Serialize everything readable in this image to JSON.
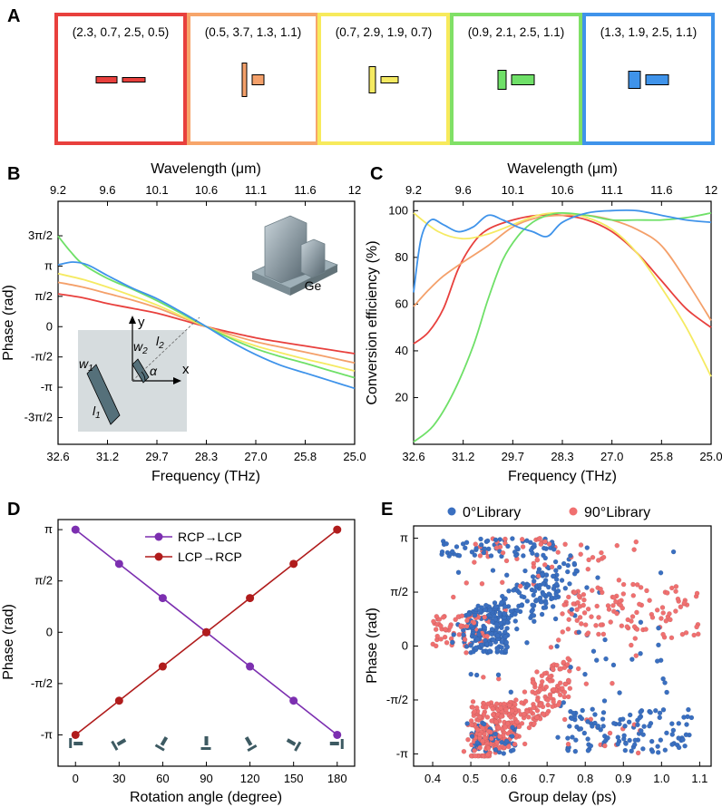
{
  "panels": {
    "A": {
      "label": "A",
      "boxes": [
        {
          "text": "(2.3, 0.7, 2.5, 0.5)",
          "params": [
            2.3,
            0.7,
            2.5,
            0.5
          ],
          "frame": "#e8403d",
          "fill": "#e8403d"
        },
        {
          "text": "(0.5, 3.7, 1.3, 1.1)",
          "params": [
            0.5,
            3.7,
            1.3,
            1.1
          ],
          "frame": "#f7a56a",
          "fill": "#f4a06a"
        },
        {
          "text": "(0.7, 2.9, 1.9, 0.7)",
          "params": [
            0.7,
            2.9,
            1.9,
            0.7
          ],
          "frame": "#f7ea5c",
          "fill": "#f5ea62"
        },
        {
          "text": "(0.9, 2.1, 2.5, 1.1)",
          "params": [
            0.9,
            2.1,
            2.5,
            1.1
          ],
          "frame": "#80e066",
          "fill": "#6fe068"
        },
        {
          "text": "(1.3, 1.9, 2.5, 1.1)",
          "params": [
            1.3,
            1.9,
            2.5,
            1.1
          ],
          "frame": "#3f93ea",
          "fill": "#3f93ea"
        }
      ]
    },
    "B": {
      "label": "B",
      "inset_material": "Ge",
      "inset_symbols": {
        "y": "y",
        "x": "x",
        "w1": "w",
        "w1_sub": "1",
        "l1": "l",
        "l1_sub": "1",
        "w2": "w",
        "w2_sub": "2",
        "l2": "l",
        "l2_sub": "2",
        "alpha": "α"
      }
    },
    "C": {
      "label": "C"
    },
    "D": {
      "label": "D"
    },
    "E": {
      "label": "E"
    }
  },
  "chart_data": [
    {
      "id": "B",
      "type": "line",
      "xlabel": "Frequency (THz)",
      "x2label": "Wavelength (μm)",
      "ylabel": "Phase  (rad)",
      "x_ticks": [
        "32.6",
        "31.2",
        "29.7",
        "28.3",
        "27.0",
        "25.8",
        "25.0"
      ],
      "x_tick_pos": [
        0,
        1,
        2,
        3,
        4,
        5,
        6
      ],
      "x2_ticks": [
        "9.2",
        "9.6",
        "10.1",
        "10.6",
        "11.1",
        "11.6",
        "12"
      ],
      "y_ticks": [
        "3π/2",
        "π",
        "π/2",
        "0",
        "-π/2",
        "-π",
        "-3π/2"
      ],
      "y_tick_vals": [
        4.712,
        3.142,
        1.571,
        0,
        -1.571,
        -3.142,
        -4.712
      ],
      "xlim": [
        0,
        6
      ],
      "ylim": [
        -6.1,
        6.5
      ],
      "series": [
        {
          "name": "red",
          "color": "#e8403d",
          "x": [
            0,
            0.5,
            1,
            1.5,
            2,
            2.5,
            3,
            3.5,
            4,
            4.5,
            5,
            5.5,
            6
          ],
          "y": [
            1.7,
            1.5,
            1.2,
            0.95,
            0.7,
            0.35,
            0.0,
            -0.3,
            -0.58,
            -0.8,
            -1.0,
            -1.2,
            -1.4
          ]
        },
        {
          "name": "orange",
          "color": "#f4a06a",
          "x": [
            0,
            0.5,
            1,
            1.5,
            2,
            2.5,
            3,
            3.5,
            4,
            4.5,
            5,
            5.5,
            6
          ],
          "y": [
            2.3,
            2.05,
            1.72,
            1.38,
            0.98,
            0.48,
            0.0,
            -0.42,
            -0.78,
            -1.06,
            -1.32,
            -1.6,
            -1.88
          ]
        },
        {
          "name": "yellow",
          "color": "#f5ea62",
          "x": [
            0,
            0.5,
            1,
            1.5,
            2,
            2.5,
            3,
            3.5,
            4,
            4.5,
            5,
            5.5,
            6
          ],
          "y": [
            2.75,
            2.45,
            2.05,
            1.6,
            1.12,
            0.55,
            0.0,
            -0.55,
            -1.0,
            -1.35,
            -1.68,
            -1.98,
            -2.3
          ]
        },
        {
          "name": "green",
          "color": "#6fe068",
          "x": [
            0,
            0.25,
            0.5,
            1,
            1.5,
            2,
            2.5,
            3,
            3.5,
            4,
            4.5,
            5,
            5.5,
            6
          ],
          "y": [
            4.7,
            3.9,
            3.25,
            2.5,
            1.95,
            1.35,
            0.68,
            0.0,
            -0.62,
            -1.15,
            -1.55,
            -1.9,
            -2.28,
            -2.65
          ]
        },
        {
          "name": "blue",
          "color": "#3f93ea",
          "x": [
            0,
            0.3,
            0.6,
            1,
            1.5,
            2,
            2.5,
            3,
            3.5,
            4,
            4.5,
            5,
            5.5,
            6
          ],
          "y": [
            3.2,
            3.35,
            3.2,
            2.65,
            2.0,
            1.45,
            0.75,
            0.0,
            -0.78,
            -1.45,
            -2.0,
            -2.4,
            -2.8,
            -3.2
          ]
        }
      ]
    },
    {
      "id": "C",
      "type": "line",
      "xlabel": "Frequency (THz)",
      "x2label": "Wavelength (μm)",
      "ylabel": "Conversion efficiency (%)",
      "x_ticks": [
        "32.6",
        "31.2",
        "29.7",
        "28.3",
        "27.0",
        "25.8",
        "25.0"
      ],
      "x_tick_pos": [
        0,
        1,
        2,
        3,
        4,
        5,
        6
      ],
      "x2_ticks": [
        "9.2",
        "9.6",
        "10.1",
        "10.6",
        "11.1",
        "11.6",
        "12"
      ],
      "y_ticks": [
        "20",
        "40",
        "60",
        "80",
        "100"
      ],
      "y_tick_vals": [
        20,
        40,
        60,
        80,
        100
      ],
      "xlim": [
        0,
        6
      ],
      "ylim": [
        0,
        104
      ],
      "series": [
        {
          "name": "red",
          "color": "#e8403d",
          "x": [
            0,
            0.3,
            0.6,
            0.9,
            1.2,
            1.5,
            2,
            2.5,
            3,
            3.5,
            4,
            4.5,
            5,
            5.5,
            6
          ],
          "y": [
            43,
            48,
            58,
            75,
            86,
            92,
            96,
            98,
            98,
            96,
            91,
            82,
            70,
            58,
            50
          ]
        },
        {
          "name": "orange",
          "color": "#f4a06a",
          "x": [
            0,
            0.3,
            0.6,
            1,
            1.5,
            2,
            2.5,
            3,
            3.5,
            4,
            4.5,
            5,
            5.5,
            6
          ],
          "y": [
            59,
            66,
            72,
            78,
            85,
            93,
            97,
            98,
            98,
            96,
            92,
            85,
            70,
            53
          ]
        },
        {
          "name": "yellow",
          "color": "#f5ea62",
          "x": [
            0,
            0.5,
            1,
            1.5,
            2,
            2.5,
            3,
            3.5,
            4,
            4.5,
            5,
            5.5,
            6
          ],
          "y": [
            99,
            91,
            88,
            90,
            94,
            98,
            99,
            97,
            92,
            82,
            67,
            50,
            29
          ]
        },
        {
          "name": "green",
          "color": "#6fe068",
          "x": [
            0,
            0.4,
            0.8,
            1.2,
            1.5,
            1.8,
            2.1,
            2.4,
            2.7,
            3.0,
            3.5,
            4,
            4.5,
            5,
            5.5,
            6
          ],
          "y": [
            1,
            8,
            22,
            42,
            62,
            79,
            89,
            95,
            98,
            99,
            98,
            96,
            96,
            96,
            97,
            99
          ]
        },
        {
          "name": "blue",
          "color": "#3f93ea",
          "x": [
            0,
            0.15,
            0.35,
            0.6,
            0.9,
            1.2,
            1.5,
            1.8,
            2.1,
            2.4,
            2.7,
            3.0,
            3.5,
            4,
            4.5,
            5,
            5.5,
            6
          ],
          "y": [
            65,
            88,
            96,
            94,
            91,
            93,
            98,
            96,
            93,
            91,
            89,
            95,
            99,
            100,
            100,
            98,
            96,
            95
          ]
        }
      ]
    },
    {
      "id": "D",
      "type": "line",
      "xlabel": "Rotation angle (degree)",
      "ylabel": "Phase  (rad)",
      "x_ticks": [
        "0",
        "30",
        "60",
        "90",
        "120",
        "150",
        "180"
      ],
      "x_tick_vals": [
        0,
        30,
        60,
        90,
        120,
        150,
        180
      ],
      "y_ticks": [
        "π",
        "π/2",
        "0",
        "-π/2",
        "-π"
      ],
      "y_tick_vals": [
        3.1416,
        1.5708,
        0,
        -1.5708,
        -3.1416
      ],
      "xlim": [
        -12,
        192
      ],
      "ylim": [
        -4.1,
        3.45
      ],
      "series": [
        {
          "name": "RCP→LCP",
          "color": "#7c2fb0",
          "x": [
            0,
            30,
            60,
            90,
            120,
            150,
            180
          ],
          "y": [
            3.1416,
            2.0944,
            1.0472,
            0,
            -1.0472,
            -2.0944,
            -3.1416
          ]
        },
        {
          "name": "LCP→RCP",
          "color": "#b01c1c",
          "x": [
            0,
            30,
            60,
            90,
            120,
            150,
            180
          ],
          "y": [
            -3.1416,
            -2.0944,
            -1.0472,
            0,
            1.0472,
            2.0944,
            3.1416
          ]
        }
      ]
    },
    {
      "id": "E",
      "type": "scatter",
      "xlabel": "Group delay (ps)",
      "ylabel": "Phase  (rad)",
      "x_ticks": [
        "0.4",
        "0.5",
        "0.6",
        "0.7",
        "0.8",
        "0.9",
        "1.0",
        "1.1"
      ],
      "x_tick_vals": [
        0.4,
        0.5,
        0.6,
        0.7,
        0.8,
        0.9,
        1.0,
        1.1
      ],
      "y_ticks": [
        "π",
        "π/2",
        "0",
        "-π/2",
        "-π"
      ],
      "y_tick_vals": [
        3.1416,
        1.5708,
        0,
        -1.5708,
        -3.1416
      ],
      "xlim": [
        0.35,
        1.13
      ],
      "ylim": [
        -3.5,
        3.5
      ],
      "series": [
        {
          "name": "0°Library",
          "color": "#3a6fc0",
          "clusters": [
            {
              "n": 160,
              "x0": 0.5,
              "x1": 0.78,
              "y0": 0.3,
              "y1": 2.2,
              "slope": 4.5
            },
            {
              "n": 60,
              "x0": 0.42,
              "x1": 0.72,
              "y0": 2.6,
              "y1": 3.14
            },
            {
              "n": 140,
              "x0": 0.48,
              "x1": 0.6,
              "y0": -0.2,
              "y1": 1.2
            },
            {
              "n": 110,
              "x0": 0.75,
              "x1": 1.08,
              "y0": -3.1,
              "y1": -1.8
            },
            {
              "n": 70,
              "x0": 0.45,
              "x1": 1.05,
              "y0": -3.14,
              "y1": 3.1
            },
            {
              "n": 50,
              "x0": 0.5,
              "x1": 0.62,
              "y0": -3.1,
              "y1": -2.2
            }
          ]
        },
        {
          "name": "90°Library",
          "color": "#f07070",
          "clusters": [
            {
              "n": 220,
              "x0": 0.5,
              "x1": 0.76,
              "y0": -3.1,
              "y1": -0.8,
              "slope": 4.5
            },
            {
              "n": 130,
              "x0": 0.5,
              "x1": 0.62,
              "y0": -3.0,
              "y1": -1.6
            },
            {
              "n": 110,
              "x0": 0.74,
              "x1": 1.1,
              "y0": 0.2,
              "y1": 1.8
            },
            {
              "n": 70,
              "x0": 0.4,
              "x1": 0.55,
              "y0": 0.0,
              "y1": 0.9
            },
            {
              "n": 60,
              "x0": 0.45,
              "x1": 0.95,
              "y0": -3.14,
              "y1": 3.1
            },
            {
              "n": 40,
              "x0": 0.5,
              "x1": 0.85,
              "y0": 2.3,
              "y1": 3.14
            }
          ]
        }
      ]
    }
  ]
}
